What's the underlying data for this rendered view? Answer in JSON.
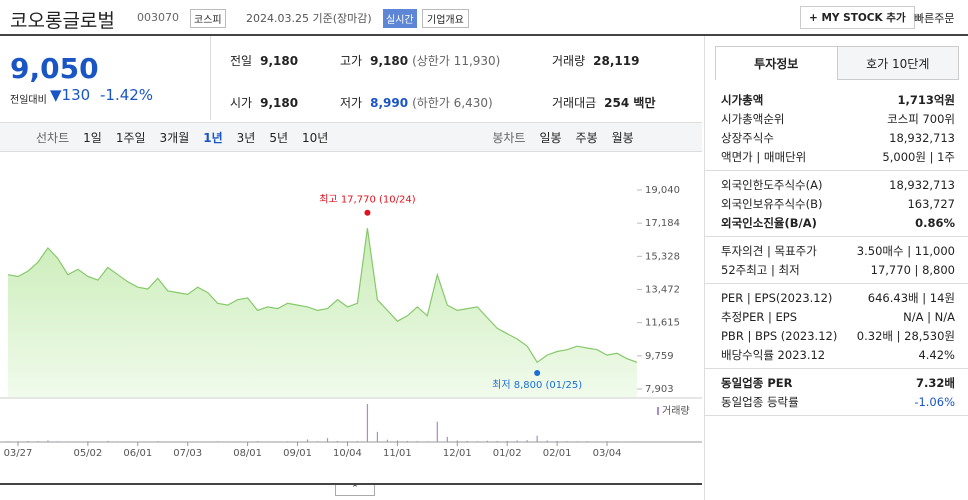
{
  "header": {
    "name": "코오롱글로벌",
    "code": "003070",
    "market": "코스피",
    "date": "2024.03.25 기준(장마감)",
    "badge": "실시간",
    "menu": "기업개요",
    "mystock": "+ MY STOCK 추가",
    "order": "빠른주문"
  },
  "price": {
    "now": "9,050",
    "change_label": "전일대비",
    "change": "130",
    "rate": "-1.42%"
  },
  "quotes": [
    {
      "label": "전일",
      "value": "9,180"
    },
    {
      "label": "고가",
      "value": "9,180",
      "note": "(상한가 11,930)"
    },
    {
      "label": "거래량",
      "value": "28,119"
    },
    {
      "label": "시가",
      "value": "9,180"
    },
    {
      "label": "저가",
      "value": "8,990",
      "note": "(하한가 6,430)"
    },
    {
      "label": "거래대금",
      "value": "254 백만"
    }
  ],
  "periods": {
    "line_label": "선차트",
    "line": [
      "1일",
      "1주일",
      "3개월",
      "1년",
      "3년",
      "5년",
      "10년"
    ],
    "selected": "1년",
    "candle_label": "봉차트",
    "candle": [
      "일봉",
      "주봉",
      "월봉"
    ]
  },
  "chart_data": {
    "type": "area",
    "categories": [
      null,
      "03/27",
      null,
      null,
      null,
      null,
      null,
      null,
      "05/02",
      null,
      null,
      null,
      null,
      "06/01",
      null,
      null,
      null,
      null,
      "07/03",
      null,
      null,
      null,
      null,
      null,
      "08/01",
      null,
      null,
      null,
      null,
      "09/01",
      null,
      null,
      null,
      null,
      "10/04",
      null,
      null,
      null,
      null,
      "11/01",
      null,
      null,
      null,
      null,
      null,
      "12/01",
      null,
      null,
      null,
      null,
      "01/02",
      null,
      null,
      null,
      null,
      "02/01",
      null,
      null,
      null,
      null,
      "03/04",
      null,
      null,
      null
    ],
    "series": [
      {
        "color": "#86c96a",
        "values": [
          14300,
          14200,
          14500,
          15000,
          15800,
          15200,
          14300,
          14600,
          14200,
          14000,
          14700,
          14300,
          13900,
          13600,
          13500,
          14100,
          13400,
          13300,
          13200,
          13600,
          13300,
          12700,
          12600,
          12900,
          13000,
          12300,
          12500,
          12400,
          12700,
          12600,
          12500,
          12300,
          12400,
          12900,
          12500,
          12700,
          16900,
          12900,
          12300,
          11700,
          12000,
          12500,
          12000,
          14300,
          12600,
          12300,
          12400,
          12500,
          11900,
          11300,
          11000,
          10700,
          10300,
          9400,
          9800,
          10000,
          10100,
          10300,
          10200,
          10100,
          9800,
          9900,
          9600,
          9400
        ]
      }
    ],
    "volume": {
      "name": "거래량",
      "color": "#a98cc9",
      "values": [
        30000,
        25000,
        40000,
        35000,
        60000,
        30000,
        25000,
        20000,
        30000,
        22000,
        45000,
        25000,
        20000,
        18000,
        20000,
        35000,
        20000,
        18000,
        15000,
        25000,
        20000,
        30000,
        25000,
        22000,
        20000,
        35000,
        25000,
        20000,
        30000,
        25000,
        100000,
        30000,
        150000,
        40000,
        30000,
        35000,
        1500000,
        400000,
        90000,
        60000,
        40000,
        35000,
        30000,
        800000,
        200000,
        60000,
        40000,
        30000,
        50000,
        40000,
        45000,
        60000,
        70000,
        250000,
        60000,
        40000,
        35000,
        30000,
        35000,
        25000,
        30000,
        25000,
        20000,
        28119
      ]
    },
    "ylim": [
      7903,
      19040
    ],
    "yticks": [
      {
        "value": 19040,
        "label": "19,040"
      },
      {
        "value": 17184,
        "label": "17,184"
      },
      {
        "value": 15328,
        "label": "15,328"
      },
      {
        "value": 13472,
        "label": "13,472"
      },
      {
        "value": 11615,
        "label": "11,615"
      },
      {
        "value": 9759,
        "label": "9,759"
      },
      {
        "value": 7903,
        "label": "7,903"
      }
    ],
    "annotations": [
      {
        "text": "최고 17,770 (10/24)",
        "value": 17770,
        "color": "#e0141e"
      },
      {
        "text": "최저 8,800 (01/25)",
        "value": 8800,
        "color": "#1a6ed8"
      }
    ]
  },
  "side": {
    "tabs": [
      "투자정보",
      "호가 10단계"
    ],
    "groups": [
      [
        {
          "label": "시가총액",
          "value": "1,713억원",
          "bold": true
        },
        {
          "label": "시가총액순위",
          "value": "코스피 700위"
        },
        {
          "label": "상장주식수",
          "value": "18,932,713"
        },
        {
          "label": "액면가 | 매매단위",
          "value": "5,000원 | 1주"
        }
      ],
      [
        {
          "label": "외국인한도주식수(A)",
          "value": "18,932,713"
        },
        {
          "label": "외국인보유주식수(B)",
          "value": "163,727"
        },
        {
          "label": "외국인소진율(B/A)",
          "value": "0.86%",
          "bold": true
        }
      ],
      [
        {
          "label": "투자의견 | 목표주가",
          "value": "3.50매수 | 11,000"
        },
        {
          "label": "52주최고 | 최저",
          "value": "17,770 | 8,800"
        }
      ],
      [
        {
          "label": "PER | EPS(2023.12)",
          "value": "646.43배 | 14원"
        },
        {
          "label": "추정PER | EPS",
          "value": "N/A | N/A"
        },
        {
          "label": "PBR | BPS (2023.12)",
          "value": "0.32배 | 28,530원"
        },
        {
          "label": "배당수익률 2023.12",
          "value": "4.42%"
        }
      ],
      [
        {
          "label": "동일업종 PER",
          "value": "7.32배",
          "bold": true
        },
        {
          "label": "동일업종 등락률",
          "value": "-1.06%"
        }
      ]
    ]
  }
}
